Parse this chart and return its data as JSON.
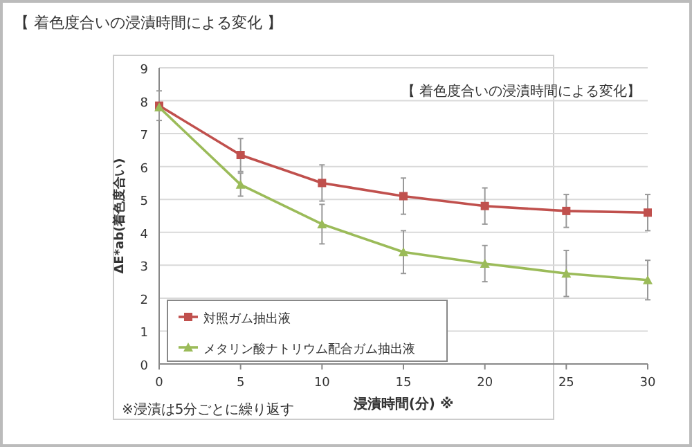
{
  "chart_data": {
    "type": "line",
    "title": "【 着色度合いの浸漬時間による変化 】",
    "xlabel": "浸漬時間(分) ※",
    "ylabel": "ΔE*ab(着色度合い)",
    "annotations": [
      "【 着色度合いの浸漬時間による変化】",
      "※浸漬は5分ごとに繰り返す"
    ],
    "x": [
      0,
      5,
      10,
      15,
      20,
      25,
      30
    ],
    "series": [
      {
        "name": "対照ガム抽出液",
        "color": "#c0504d",
        "marker": "square",
        "values": [
          7.85,
          6.35,
          5.5,
          5.1,
          4.8,
          4.65,
          4.6
        ],
        "errors": [
          0.45,
          0.5,
          0.55,
          0.55,
          0.55,
          0.5,
          0.55
        ]
      },
      {
        "name": "メタリン酸ナトリウム配合ガム抽出液",
        "color": "#9bbb59",
        "marker": "triangle",
        "values": [
          7.8,
          5.45,
          4.25,
          3.4,
          3.05,
          2.75,
          2.55
        ],
        "errors": [
          0.1,
          0.35,
          0.6,
          0.65,
          0.55,
          0.7,
          0.6
        ]
      }
    ],
    "xlim": [
      0,
      30
    ],
    "xticks": [
      0,
      5,
      10,
      15,
      20,
      25,
      30
    ],
    "ylim": [
      0,
      9
    ],
    "yticks": [
      0,
      1,
      2,
      3,
      4,
      5,
      6,
      7,
      8,
      9
    ],
    "grid": "y",
    "legend": "bottom left"
  }
}
